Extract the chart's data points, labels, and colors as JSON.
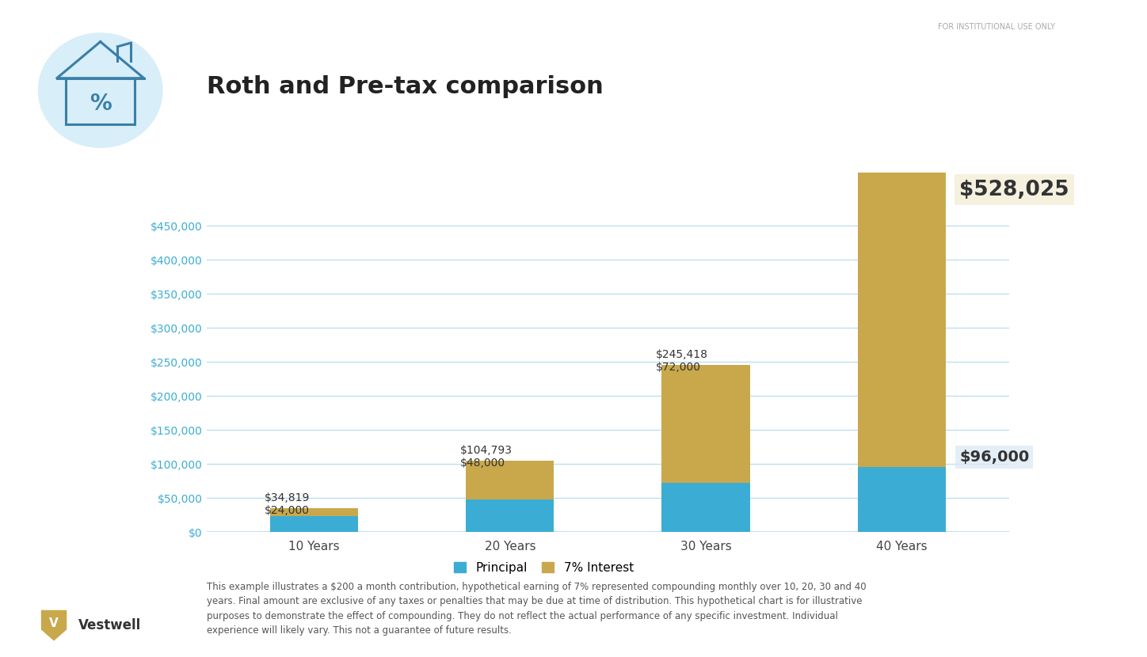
{
  "title": "Roth and Pre-tax comparison",
  "categories": [
    "10 Years",
    "20 Years",
    "30 Years",
    "40 Years"
  ],
  "principal": [
    24000,
    48000,
    72000,
    96000
  ],
  "totals": [
    34819,
    104793,
    245418,
    528025
  ],
  "principal_color": "#3BADD4",
  "interest_color": "#C9A84C",
  "background_color": "#FFFFFF",
  "grid_color": "#BDE0F0",
  "axis_label_color": "#3BADD4",
  "title_color": "#222222",
  "annotation_color": "#333333",
  "ylim": [
    0,
    550000
  ],
  "yticks": [
    0,
    50000,
    100000,
    150000,
    200000,
    250000,
    300000,
    350000,
    400000,
    450000
  ],
  "footer_text": "This example illustrates a $200 a month contribution, hypothetical earning of 7% represented compounding monthly over 10, 20, 30 and 40\nyears. Final amount are exclusive of any taxes or penalties that may be due at time of distribution. This hypothetical chart is for illustrative\npurposes to demonstrate the effect of compounding. They do not reflect the actual performance of any specific investment. Individual\nexperience will likely vary. This not a guarantee of future results.",
  "institutional_text": "FOR INSTITUTIONAL USE ONLY",
  "vestwell_text": "Vestwell",
  "legend_principal": "Principal",
  "legend_interest": "7% Interest",
  "bar_width": 0.45,
  "annotation_528_bg": "#F5F0DC",
  "annotation_96_bg": "#DCE9F5",
  "house_circle_color": "#D8EEF8",
  "house_line_color": "#3A7FA8"
}
